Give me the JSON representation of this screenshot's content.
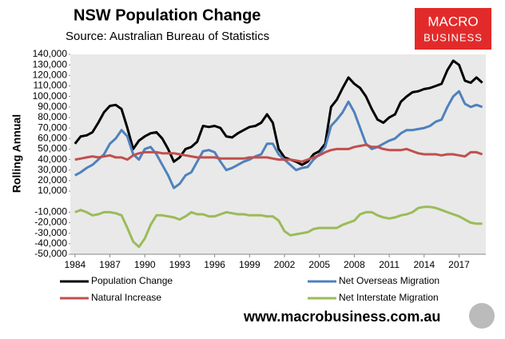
{
  "chart_data": {
    "type": "line",
    "title": "NSW Population Change",
    "subtitle": "Source: Australian Bureau of Statistics",
    "y_label": "Rolling Annual",
    "logo": {
      "line1": "MACRO",
      "line2": "BUSINESS"
    },
    "website": "www.macrobusiness.com.au",
    "x": [
      1984,
      1984.5,
      1985,
      1985.5,
      1986,
      1986.5,
      1987,
      1987.5,
      1988,
      1988.5,
      1989,
      1989.5,
      1990,
      1990.5,
      1991,
      1991.5,
      1992,
      1992.5,
      1993,
      1993.5,
      1994,
      1994.5,
      1995,
      1995.5,
      1996,
      1996.5,
      1997,
      1997.5,
      1998,
      1998.5,
      1999,
      1999.5,
      2000,
      2000.5,
      2001,
      2001.5,
      2002,
      2002.5,
      2003,
      2003.5,
      2004,
      2004.5,
      2005,
      2005.5,
      2006,
      2006.5,
      2007,
      2007.5,
      2008,
      2008.5,
      2009,
      2009.5,
      2010,
      2010.5,
      2011,
      2011.5,
      2012,
      2012.5,
      2013,
      2013.5,
      2014,
      2014.5,
      2015,
      2015.5,
      2016,
      2016.5,
      2017,
      2017.5,
      2018,
      2018.5,
      2019
    ],
    "series": [
      {
        "name": "Population Change",
        "color": "#000000",
        "values": [
          55000,
          62000,
          63000,
          66000,
          75000,
          85000,
          91000,
          92000,
          88000,
          70000,
          50000,
          58000,
          62000,
          65000,
          66000,
          60000,
          50000,
          38000,
          42000,
          50000,
          52000,
          57000,
          72000,
          71000,
          72000,
          70000,
          62000,
          61000,
          65000,
          68000,
          71000,
          72000,
          75000,
          83000,
          75000,
          50000,
          42000,
          40000,
          38000,
          35000,
          38000,
          45000,
          48000,
          55000,
          90000,
          97000,
          108000,
          118000,
          112000,
          108000,
          100000,
          88000,
          78000,
          75000,
          80000,
          83000,
          95000,
          100000,
          104000,
          105000,
          107000,
          108000,
          110000,
          112000,
          125000,
          134000,
          130000,
          115000,
          113000,
          118000,
          113000
        ]
      },
      {
        "name": "Net Overseas Migration",
        "color": "#4f81bd",
        "values": [
          25000,
          28000,
          32000,
          35000,
          40000,
          45000,
          55000,
          60000,
          68000,
          62000,
          45000,
          40000,
          50000,
          52000,
          45000,
          35000,
          25000,
          13000,
          17000,
          25000,
          28000,
          38000,
          48000,
          49000,
          47000,
          38000,
          30000,
          32000,
          35000,
          38000,
          40000,
          43000,
          45000,
          55000,
          55000,
          45000,
          40000,
          35000,
          30000,
          32000,
          33000,
          40000,
          45000,
          52000,
          72000,
          78000,
          85000,
          95000,
          85000,
          70000,
          55000,
          50000,
          52000,
          55000,
          58000,
          60000,
          65000,
          68000,
          68000,
          69000,
          70000,
          72000,
          76000,
          78000,
          90000,
          100000,
          105000,
          93000,
          90000,
          92000,
          90000
        ]
      },
      {
        "name": "Natural Increase",
        "color": "#c0504d",
        "values": [
          40000,
          41000,
          42000,
          43000,
          42000,
          43000,
          44000,
          42000,
          42000,
          40000,
          44000,
          46000,
          47000,
          47000,
          47000,
          46000,
          46000,
          46000,
          45000,
          44000,
          43000,
          42000,
          42000,
          42000,
          42000,
          41000,
          41000,
          41000,
          41000,
          41000,
          42000,
          42000,
          42000,
          42000,
          41000,
          40000,
          40000,
          40000,
          39000,
          38000,
          40000,
          42000,
          44000,
          47000,
          49000,
          50000,
          50000,
          50000,
          52000,
          53000,
          54000,
          52000,
          52000,
          50000,
          49000,
          49000,
          49000,
          50000,
          48000,
          46000,
          45000,
          45000,
          45000,
          44000,
          45000,
          45000,
          44000,
          43000,
          47000,
          47000,
          45000
        ]
      },
      {
        "name": "Net Interstate Migration",
        "color": "#9bbb59",
        "values": [
          -10000,
          -8000,
          -10000,
          -13000,
          -12000,
          -10000,
          -10000,
          -11000,
          -13000,
          -25000,
          -38000,
          -43000,
          -35000,
          -22000,
          -13000,
          -13000,
          -14000,
          -15000,
          -17000,
          -14000,
          -10000,
          -12000,
          -12000,
          -14000,
          -14000,
          -12000,
          -10000,
          -11000,
          -12000,
          -12000,
          -13000,
          -13000,
          -13000,
          -14000,
          -14000,
          -18000,
          -28000,
          -32000,
          -31000,
          -30000,
          -29000,
          -26000,
          -25000,
          -25000,
          -25000,
          -25000,
          -22000,
          -20000,
          -18000,
          -12000,
          -10000,
          -10000,
          -13000,
          -15000,
          -16000,
          -15000,
          -13000,
          -12000,
          -10000,
          -6000,
          -5000,
          -5000,
          -6000,
          -8000,
          -10000,
          -12000,
          -14000,
          -17000,
          -20000,
          -21000,
          -21000
        ]
      }
    ],
    "xlim": [
      1983.6,
      2019.3
    ],
    "xticks": [
      1984,
      1987,
      1990,
      1993,
      1996,
      1999,
      2002,
      2005,
      2008,
      2011,
      2014,
      2017
    ],
    "ylim": [
      -50000,
      140000
    ],
    "yticks": [
      {
        "value": -50000,
        "label": "-50,000"
      },
      {
        "value": -40000,
        "label": "-40,000"
      },
      {
        "value": -30000,
        "label": "-30,000"
      },
      {
        "value": -20000,
        "label": "-20,000"
      },
      {
        "value": -10000,
        "label": "-10,000"
      },
      {
        "value": 10000,
        "label": "10,000"
      },
      {
        "value": 20000,
        "label": "20,000"
      },
      {
        "value": 30000,
        "label": "30,000"
      },
      {
        "value": 40000,
        "label": "40,000"
      },
      {
        "value": 50000,
        "label": "50,000"
      },
      {
        "value": 60000,
        "label": "60,000"
      },
      {
        "value": 70000,
        "label": "70,000"
      },
      {
        "value": 80000,
        "label": "80,000"
      },
      {
        "value": 90000,
        "label": "90,000"
      },
      {
        "value": 100000,
        "label": "100,000"
      },
      {
        "value": 110000,
        "label": "110,000"
      },
      {
        "value": 120000,
        "label": "120,000"
      },
      {
        "value": 130000,
        "label": "130,000"
      },
      {
        "value": 140000,
        "label": "140,000"
      }
    ],
    "grid": false
  }
}
